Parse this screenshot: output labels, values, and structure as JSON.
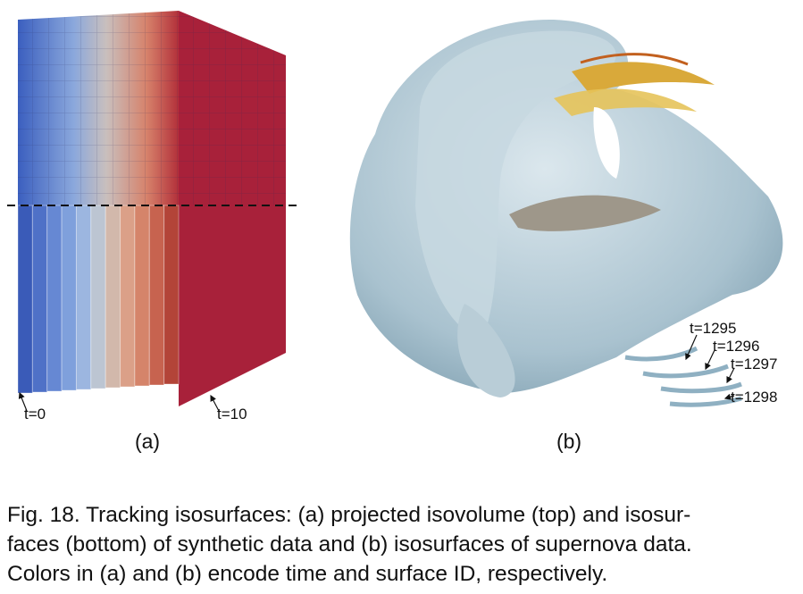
{
  "panels": [
    {
      "label": "(a)",
      "annotations": [
        "t=0",
        "t=10"
      ]
    },
    {
      "label": "(b)",
      "annotations": [
        "t=1295",
        "t=1296",
        "t=1297",
        "t=1298"
      ]
    }
  ],
  "caption": {
    "lines": [
      "Fig. 18. Tracking isosurfaces: (a) projected isovolume (top) and isosur-",
      "faces (bottom) of synthetic data and (b) isosurfaces of supernova data.",
      "Colors in (a) and (b) encode time and surface ID, respectively."
    ]
  }
}
